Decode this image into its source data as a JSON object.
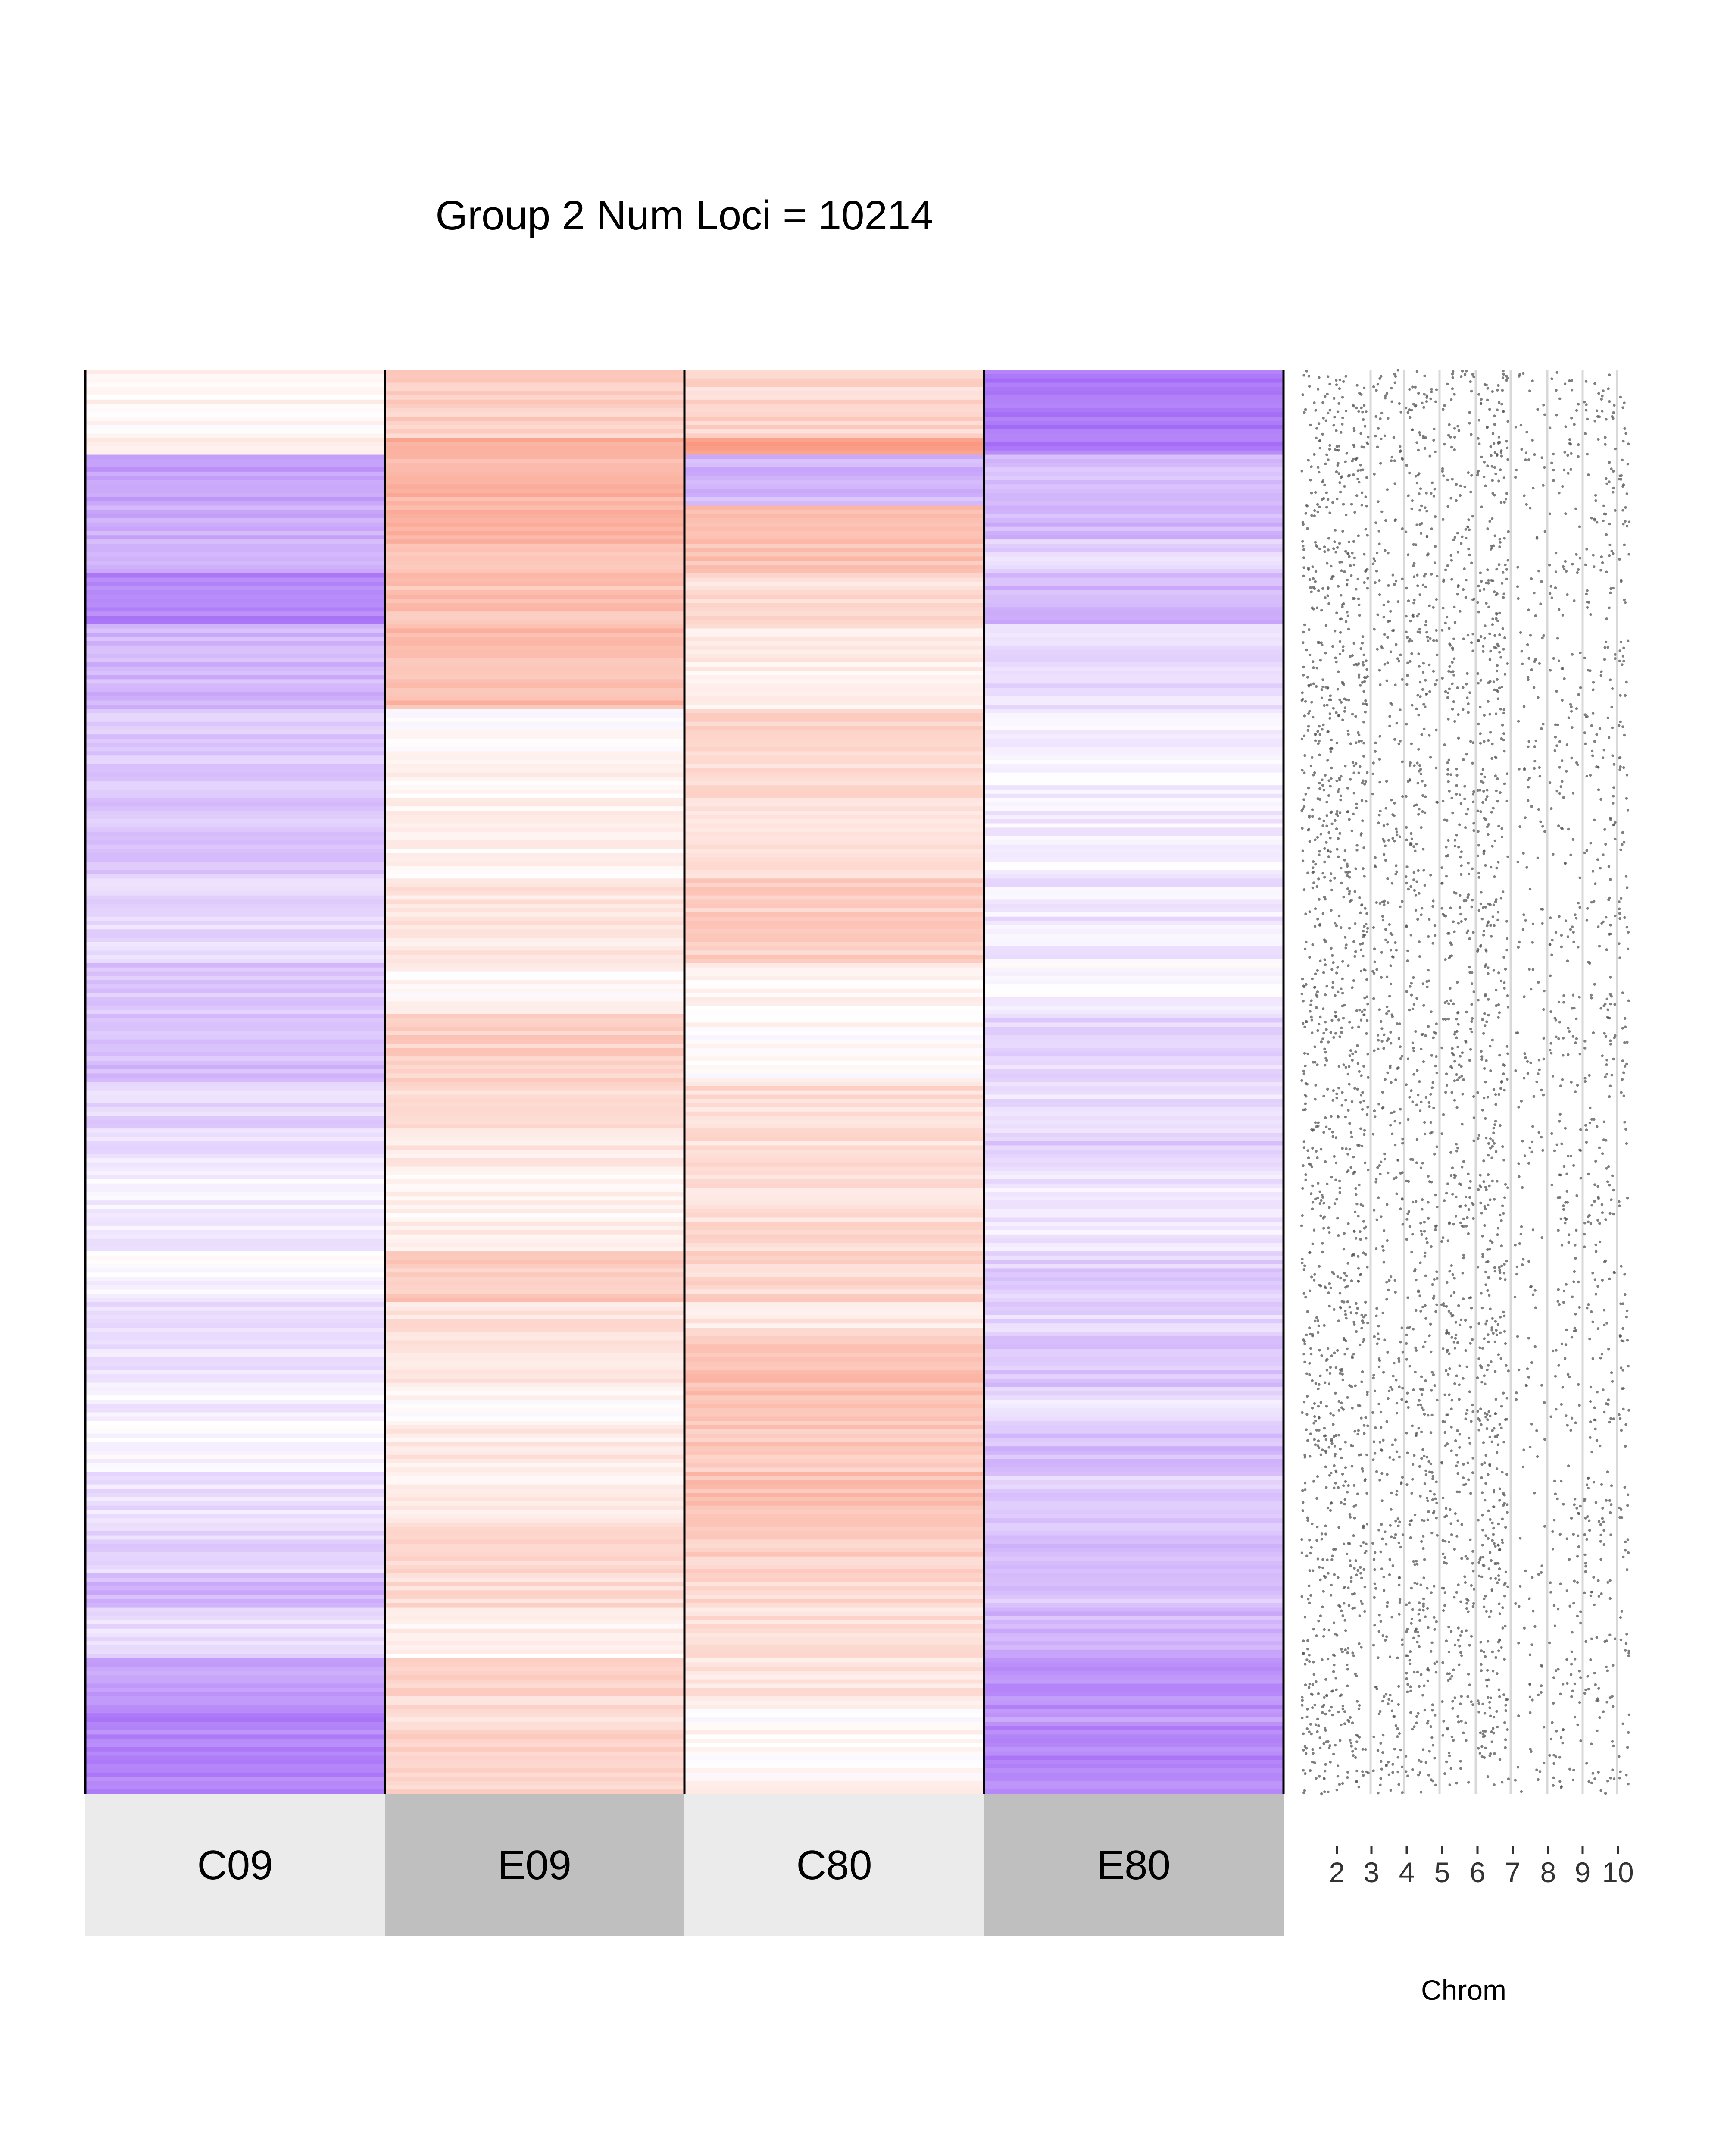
{
  "chart_data": {
    "type": "heatmap",
    "title": "Group 2 Num Loci = 10214",
    "num_loci": 10214,
    "samples": [
      "C09",
      "E09",
      "C80",
      "E80"
    ],
    "sample_label_colors": [
      "#ebebeb",
      "#bfbfbf",
      "#ebebeb",
      "#bfbfbf"
    ],
    "colors": {
      "low": "#9b5cf6",
      "mid": "#ffffff",
      "high": "#f8785a",
      "point": "#555555",
      "chrom_line": "#d9d9d9"
    },
    "value_range": [
      -1,
      1
    ],
    "row_blocks": [
      {
        "rows": [
          0,
          4
        ],
        "values": [
          0.05,
          0.35,
          0.3,
          -0.85
        ]
      },
      {
        "rows": [
          4,
          5
        ],
        "values": [
          0.2,
          0.65,
          0.7,
          -0.8
        ]
      },
      {
        "rows": [
          5,
          8
        ],
        "values": [
          -0.6,
          0.55,
          -0.45,
          -0.4
        ]
      },
      {
        "rows": [
          8,
          10
        ],
        "values": [
          -0.5,
          0.6,
          0.45,
          -0.45
        ]
      },
      {
        "rows": [
          10,
          12
        ],
        "values": [
          -0.45,
          0.5,
          0.45,
          -0.25
        ]
      },
      {
        "rows": [
          12,
          15
        ],
        "values": [
          -0.75,
          0.45,
          0.25,
          -0.45
        ]
      },
      {
        "rows": [
          15,
          20
        ],
        "values": [
          -0.45,
          0.5,
          0.15,
          -0.2
        ]
      },
      {
        "rows": [
          20,
          23
        ],
        "values": [
          -0.35,
          0.02,
          0.3,
          -0.05
        ]
      },
      {
        "rows": [
          23,
          30
        ],
        "values": [
          -0.35,
          0.1,
          0.25,
          -0.1
        ]
      },
      {
        "rows": [
          30,
          35
        ],
        "values": [
          -0.25,
          0.2,
          0.35,
          -0.15
        ]
      },
      {
        "rows": [
          35,
          38
        ],
        "values": [
          -0.35,
          0.05,
          0.05,
          -0.05
        ]
      },
      {
        "rows": [
          38,
          42
        ],
        "values": [
          -0.4,
          0.35,
          0.05,
          -0.25
        ]
      },
      {
        "rows": [
          42,
          45
        ],
        "values": [
          -0.25,
          0.25,
          0.25,
          -0.2
        ]
      },
      {
        "rows": [
          45,
          47
        ],
        "values": [
          -0.2,
          0.15,
          0.25,
          -0.3
        ]
      },
      {
        "rows": [
          47,
          52
        ],
        "values": [
          -0.1,
          0.1,
          0.25,
          -0.15
        ]
      },
      {
        "rows": [
          52,
          55
        ],
        "values": [
          -0.05,
          0.4,
          0.3,
          -0.3
        ]
      },
      {
        "rows": [
          55,
          57
        ],
        "values": [
          -0.2,
          0.2,
          0.2,
          -0.25
        ]
      },
      {
        "rows": [
          57,
          60
        ],
        "values": [
          -0.15,
          0.15,
          0.45,
          -0.35
        ]
      },
      {
        "rows": [
          60,
          62
        ],
        "values": [
          -0.1,
          0.05,
          0.45,
          -0.2
        ]
      },
      {
        "rows": [
          62,
          65
        ],
        "values": [
          -0.05,
          0.15,
          0.4,
          -0.4
        ]
      },
      {
        "rows": [
          65,
          68
        ],
        "values": [
          -0.2,
          0.1,
          0.45,
          -0.3
        ]
      },
      {
        "rows": [
          68,
          71
        ],
        "values": [
          -0.25,
          0.25,
          0.35,
          -0.4
        ]
      },
      {
        "rows": [
          71,
          73
        ],
        "values": [
          -0.45,
          0.25,
          0.3,
          -0.35
        ]
      },
      {
        "rows": [
          73,
          76
        ],
        "values": [
          -0.2,
          0.1,
          0.25,
          -0.45
        ]
      },
      {
        "rows": [
          76,
          79
        ],
        "values": [
          -0.6,
          0.3,
          0.2,
          -0.7
        ]
      },
      {
        "rows": [
          79,
          80
        ],
        "values": [
          -0.8,
          0.25,
          0.02,
          -0.6
        ]
      },
      {
        "rows": [
          80,
          84
        ],
        "values": [
          -0.75,
          0.3,
          0.05,
          -0.75
        ]
      }
    ],
    "chrom_axis": {
      "xlabel": "Chrom",
      "ticks": [
        "2",
        "3",
        "4",
        "5",
        "6",
        "7",
        "8",
        "9",
        "10"
      ],
      "positions_per_chrom": {
        "1": 6,
        "2": 5,
        "3": 4,
        "4": 4,
        "5": 6,
        "6": 3,
        "7": 3,
        "8": 3,
        "9": 3,
        "10": 2
      },
      "density_per_chrom": {
        "1": 1.0,
        "2": 0.7,
        "3": 0.8,
        "4": 0.8,
        "5": 1.0,
        "6": 0.35,
        "7": 0.45,
        "8": 0.6,
        "9": 0.7,
        "10": 0.25
      }
    }
  }
}
